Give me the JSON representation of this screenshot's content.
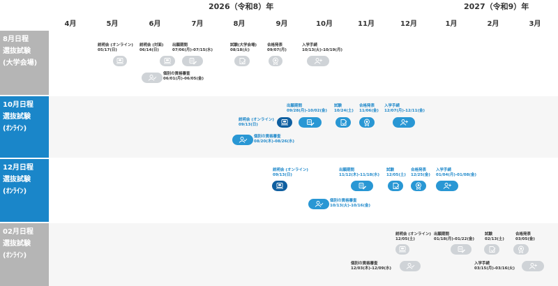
{
  "years": [
    "2026（令和8）年",
    "2027（令和9）年"
  ],
  "months": [
    "4月",
    "5月",
    "6月",
    "7月",
    "8月",
    "9月",
    "10月",
    "11月",
    "12月",
    "1月",
    "2月",
    "3月"
  ],
  "rows": [
    {
      "id": "aug",
      "labels": [
        "8月日程",
        "選抜試験",
        "(大学会場)"
      ],
      "theme": "gray",
      "events": [
        {
          "key": "briefing-online",
          "icon": "briefing",
          "label": "説明会 (オンライン)",
          "date": "05/17(日)"
        },
        {
          "key": "briefing-inperson",
          "icon": "briefing",
          "label": "説明会 (対面)",
          "date": "06/14(日)"
        },
        {
          "key": "application",
          "icon": "application",
          "label": "出願期間",
          "date": "07/06(月)-07/15(水)"
        },
        {
          "key": "exam",
          "icon": "exam",
          "label": "試験(大学会場)",
          "date": "08/18(火)"
        },
        {
          "key": "result",
          "icon": "result",
          "label": "合格発表",
          "date": "09/07(月)"
        },
        {
          "key": "enroll",
          "icon": "enroll",
          "label": "入学手続",
          "date": "10/13(火)-10/19(月)"
        },
        {
          "key": "preliminary",
          "icon": "preliminary",
          "label": "個別の資格審査",
          "date": "06/01(月)-06/05(金)"
        }
      ]
    },
    {
      "id": "oct",
      "labels": [
        "10月日程",
        "選抜試験",
        "(ｵﾝﾗｲﾝ)"
      ],
      "theme": "blue",
      "events": [
        {
          "key": "briefing-online",
          "icon": "briefing",
          "label": "説明会 (オンライン)",
          "date": "09/13(日)"
        },
        {
          "key": "application",
          "icon": "application",
          "label": "出願期間",
          "date": "09/28(月)-10/02(金)"
        },
        {
          "key": "exam",
          "icon": "exam",
          "label": "試験",
          "date": "10/24(土)"
        },
        {
          "key": "result",
          "icon": "result",
          "label": "合格発表",
          "date": "11/06(金)"
        },
        {
          "key": "enroll",
          "icon": "enroll",
          "label": "入学手続",
          "date": "12/07(月)-12/11(金)"
        },
        {
          "key": "preliminary",
          "icon": "preliminary",
          "label": "個別の資格審査",
          "date": "08/20(木)-08/26(水)"
        }
      ]
    },
    {
      "id": "dec",
      "labels": [
        "12月日程",
        "選抜試験",
        "(ｵﾝﾗｲﾝ)"
      ],
      "theme": "blue",
      "events": [
        {
          "key": "briefing-online",
          "icon": "briefing",
          "label": "説明会 (オンライン)",
          "date": "09/13(日)"
        },
        {
          "key": "application",
          "icon": "application",
          "label": "出願期間",
          "date": "11/12(木)-11/18(水)"
        },
        {
          "key": "exam",
          "icon": "exam",
          "label": "試験",
          "date": "12/05(土)"
        },
        {
          "key": "result",
          "icon": "result",
          "label": "合格発表",
          "date": "12/25(金)"
        },
        {
          "key": "enroll",
          "icon": "enroll",
          "label": "入学手続",
          "date": "01/04(月)-01/08(金)"
        },
        {
          "key": "preliminary",
          "icon": "preliminary",
          "label": "個別の資格審査",
          "date": "10/13(火)-10/16(金)"
        }
      ]
    },
    {
      "id": "feb",
      "labels": [
        "02月日程",
        "選抜試験",
        "(ｵﾝﾗｲﾝ)"
      ],
      "theme": "gray",
      "events": [
        {
          "key": "briefing-online",
          "icon": "briefing",
          "label": "説明会 (オンライン)",
          "date": "12/05(土)"
        },
        {
          "key": "application",
          "icon": "application",
          "label": "出願期間",
          "date": "01/18(月)-01/22(金)"
        },
        {
          "key": "exam",
          "icon": "exam",
          "label": "試験",
          "date": "02/13(土)"
        },
        {
          "key": "result",
          "icon": "result",
          "label": "合格発表",
          "date": "03/05(金)"
        },
        {
          "key": "preliminary",
          "icon": "preliminary",
          "label": "個別の資格審査",
          "date": "12/03(木)-12/09(水)"
        },
        {
          "key": "enroll",
          "icon": "enroll",
          "label": "入学手続",
          "date": "03/15(月)-03/16(火)"
        }
      ]
    }
  ]
}
